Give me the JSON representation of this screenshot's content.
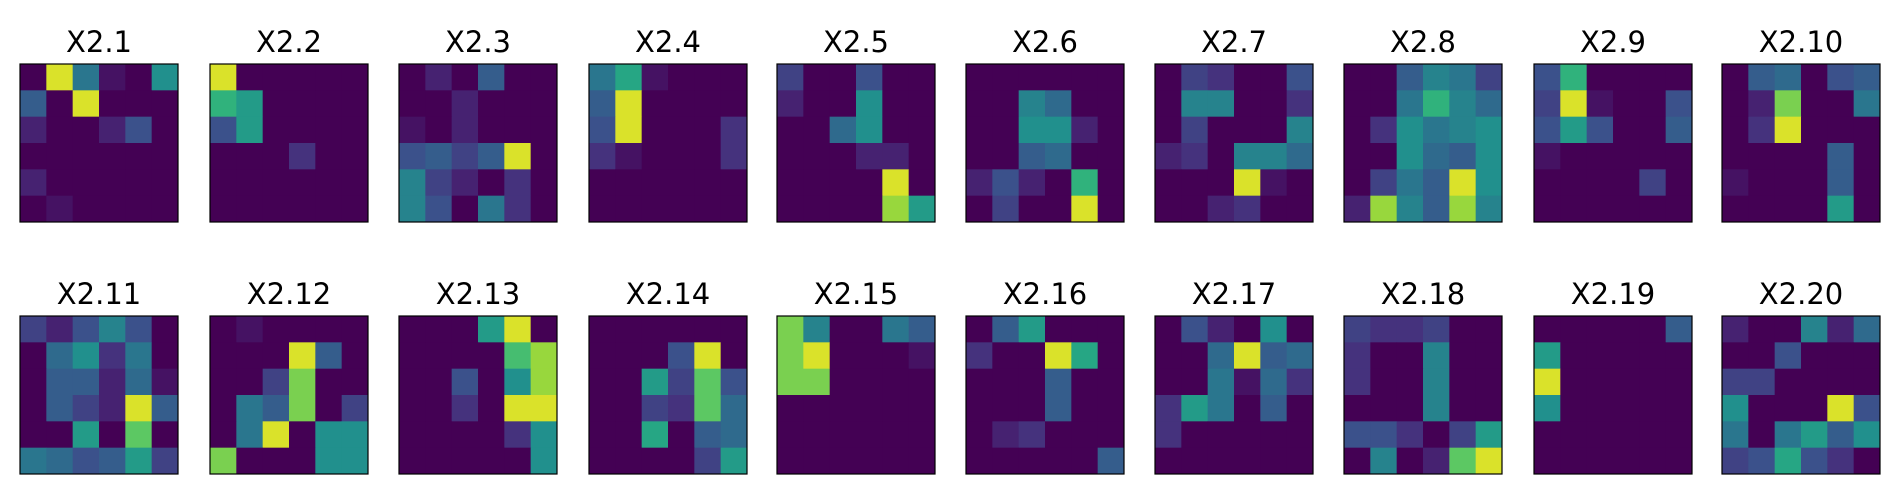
{
  "chart_data": {
    "type": "heatmap",
    "colormap": "viridis",
    "color_range": [
      0,
      1
    ],
    "panels": [
      {
        "title": "X2.1",
        "grid": [
          [
            0.0,
            0.95,
            0.4,
            0.05,
            0.0,
            0.5
          ],
          [
            0.3,
            0.0,
            0.95,
            0.0,
            0.0,
            0.0
          ],
          [
            0.1,
            0.0,
            0.0,
            0.1,
            0.25,
            0.0
          ],
          [
            0.0,
            0.0,
            0.0,
            0.0,
            0.0,
            0.0
          ],
          [
            0.1,
            0.0,
            0.0,
            0.0,
            0.0,
            0.0
          ],
          [
            0.0,
            0.05,
            0.0,
            0.0,
            0.0,
            0.0
          ]
        ]
      },
      {
        "title": "X2.2",
        "grid": [
          [
            0.95,
            0.0,
            0.0,
            0.0,
            0.0,
            0.0
          ],
          [
            0.65,
            0.55,
            0.0,
            0.0,
            0.0,
            0.0
          ],
          [
            0.25,
            0.55,
            0.0,
            0.0,
            0.0,
            0.0
          ],
          [
            0.0,
            0.0,
            0.0,
            0.15,
            0.0,
            0.0
          ],
          [
            0.0,
            0.0,
            0.0,
            0.0,
            0.0,
            0.0
          ],
          [
            0.0,
            0.0,
            0.0,
            0.0,
            0.0,
            0.0
          ]
        ]
      },
      {
        "title": "X2.3",
        "grid": [
          [
            0.0,
            0.1,
            0.0,
            0.3,
            0.0,
            0.0
          ],
          [
            0.0,
            0.0,
            0.1,
            0.0,
            0.0,
            0.0
          ],
          [
            0.05,
            0.0,
            0.1,
            0.0,
            0.0,
            0.0
          ],
          [
            0.25,
            0.3,
            0.2,
            0.3,
            0.95,
            0.0
          ],
          [
            0.45,
            0.2,
            0.1,
            0.0,
            0.15,
            0.0
          ],
          [
            0.45,
            0.25,
            0.0,
            0.4,
            0.15,
            0.0
          ]
        ]
      },
      {
        "title": "X2.4",
        "grid": [
          [
            0.4,
            0.6,
            0.05,
            0.0,
            0.0,
            0.0
          ],
          [
            0.3,
            0.95,
            0.0,
            0.0,
            0.0,
            0.0
          ],
          [
            0.25,
            0.95,
            0.0,
            0.0,
            0.0,
            0.15
          ],
          [
            0.15,
            0.05,
            0.0,
            0.0,
            0.0,
            0.15
          ],
          [
            0.0,
            0.0,
            0.0,
            0.0,
            0.0,
            0.0
          ],
          [
            0.0,
            0.0,
            0.0,
            0.0,
            0.0,
            0.0
          ]
        ]
      },
      {
        "title": "X2.5",
        "grid": [
          [
            0.2,
            0.0,
            0.0,
            0.25,
            0.0,
            0.0
          ],
          [
            0.1,
            0.0,
            0.0,
            0.5,
            0.0,
            0.0
          ],
          [
            0.0,
            0.0,
            0.35,
            0.5,
            0.0,
            0.0
          ],
          [
            0.0,
            0.0,
            0.0,
            0.1,
            0.1,
            0.0
          ],
          [
            0.0,
            0.0,
            0.0,
            0.0,
            0.95,
            0.0
          ],
          [
            0.0,
            0.0,
            0.0,
            0.0,
            0.85,
            0.55
          ]
        ]
      },
      {
        "title": "X2.6",
        "grid": [
          [
            0.0,
            0.0,
            0.0,
            0.0,
            0.0,
            0.0
          ],
          [
            0.0,
            0.0,
            0.45,
            0.35,
            0.0,
            0.0
          ],
          [
            0.0,
            0.0,
            0.5,
            0.5,
            0.1,
            0.0
          ],
          [
            0.0,
            0.0,
            0.3,
            0.35,
            0.0,
            0.0
          ],
          [
            0.1,
            0.25,
            0.1,
            0.0,
            0.65,
            0.0
          ],
          [
            0.0,
            0.2,
            0.0,
            0.0,
            0.95,
            0.0
          ]
        ]
      },
      {
        "title": "X2.7",
        "grid": [
          [
            0.0,
            0.2,
            0.15,
            0.0,
            0.0,
            0.25
          ],
          [
            0.0,
            0.45,
            0.45,
            0.0,
            0.0,
            0.15
          ],
          [
            0.0,
            0.2,
            0.0,
            0.0,
            0.0,
            0.45
          ],
          [
            0.1,
            0.15,
            0.0,
            0.45,
            0.45,
            0.35
          ],
          [
            0.0,
            0.0,
            0.0,
            0.95,
            0.05,
            0.0
          ],
          [
            0.0,
            0.0,
            0.1,
            0.15,
            0.0,
            0.0
          ]
        ]
      },
      {
        "title": "X2.8",
        "grid": [
          [
            0.0,
            0.0,
            0.3,
            0.45,
            0.4,
            0.2
          ],
          [
            0.0,
            0.0,
            0.4,
            0.65,
            0.45,
            0.35
          ],
          [
            0.0,
            0.15,
            0.5,
            0.4,
            0.45,
            0.5
          ],
          [
            0.0,
            0.0,
            0.5,
            0.35,
            0.3,
            0.5
          ],
          [
            0.0,
            0.2,
            0.4,
            0.3,
            0.95,
            0.5
          ],
          [
            0.1,
            0.85,
            0.45,
            0.3,
            0.85,
            0.45
          ]
        ]
      },
      {
        "title": "X2.9",
        "grid": [
          [
            0.25,
            0.65,
            0.0,
            0.0,
            0.0,
            0.0
          ],
          [
            0.2,
            0.95,
            0.05,
            0.0,
            0.0,
            0.25
          ],
          [
            0.25,
            0.55,
            0.25,
            0.0,
            0.0,
            0.3
          ],
          [
            0.05,
            0.0,
            0.0,
            0.0,
            0.0,
            0.0
          ],
          [
            0.0,
            0.0,
            0.0,
            0.0,
            0.2,
            0.0
          ],
          [
            0.0,
            0.0,
            0.0,
            0.0,
            0.0,
            0.0
          ]
        ]
      },
      {
        "title": "X2.10",
        "grid": [
          [
            0.0,
            0.3,
            0.35,
            0.0,
            0.25,
            0.3
          ],
          [
            0.0,
            0.1,
            0.8,
            0.0,
            0.0,
            0.4
          ],
          [
            0.0,
            0.15,
            0.95,
            0.0,
            0.0,
            0.0
          ],
          [
            0.0,
            0.0,
            0.0,
            0.0,
            0.3,
            0.0
          ],
          [
            0.05,
            0.0,
            0.0,
            0.0,
            0.3,
            0.0
          ],
          [
            0.0,
            0.0,
            0.0,
            0.0,
            0.55,
            0.0
          ]
        ]
      },
      {
        "title": "X2.11",
        "grid": [
          [
            0.2,
            0.1,
            0.25,
            0.45,
            0.25,
            0.0
          ],
          [
            0.0,
            0.35,
            0.5,
            0.15,
            0.4,
            0.0
          ],
          [
            0.0,
            0.3,
            0.3,
            0.1,
            0.35,
            0.05
          ],
          [
            0.0,
            0.3,
            0.2,
            0.1,
            0.95,
            0.3
          ],
          [
            0.0,
            0.0,
            0.55,
            0.0,
            0.75,
            0.0
          ],
          [
            0.4,
            0.35,
            0.25,
            0.3,
            0.55,
            0.2
          ]
        ]
      },
      {
        "title": "X2.12",
        "grid": [
          [
            0.0,
            0.05,
            0.0,
            0.0,
            0.0,
            0.0
          ],
          [
            0.0,
            0.0,
            0.0,
            0.95,
            0.3,
            0.0
          ],
          [
            0.0,
            0.0,
            0.2,
            0.8,
            0.0,
            0.0
          ],
          [
            0.0,
            0.4,
            0.3,
            0.8,
            0.0,
            0.2
          ],
          [
            0.0,
            0.4,
            0.95,
            0.0,
            0.5,
            0.5
          ],
          [
            0.8,
            0.0,
            0.0,
            0.0,
            0.5,
            0.5
          ]
        ]
      },
      {
        "title": "X2.13",
        "grid": [
          [
            0.0,
            0.0,
            0.0,
            0.55,
            0.95,
            0.0
          ],
          [
            0.0,
            0.0,
            0.0,
            0.0,
            0.7,
            0.85
          ],
          [
            0.0,
            0.0,
            0.25,
            0.0,
            0.5,
            0.85
          ],
          [
            0.0,
            0.0,
            0.15,
            0.0,
            0.95,
            0.95
          ],
          [
            0.0,
            0.0,
            0.0,
            0.0,
            0.15,
            0.5
          ],
          [
            0.0,
            0.0,
            0.0,
            0.0,
            0.0,
            0.5
          ]
        ]
      },
      {
        "title": "X2.14",
        "grid": [
          [
            0.0,
            0.0,
            0.0,
            0.0,
            0.0,
            0.0
          ],
          [
            0.0,
            0.0,
            0.0,
            0.25,
            0.95,
            0.0
          ],
          [
            0.0,
            0.0,
            0.55,
            0.2,
            0.75,
            0.25
          ],
          [
            0.0,
            0.0,
            0.2,
            0.15,
            0.75,
            0.35
          ],
          [
            0.0,
            0.0,
            0.6,
            0.0,
            0.3,
            0.35
          ],
          [
            0.0,
            0.0,
            0.0,
            0.0,
            0.2,
            0.55
          ]
        ]
      },
      {
        "title": "X2.15",
        "grid": [
          [
            0.8,
            0.45,
            0.0,
            0.0,
            0.4,
            0.3
          ],
          [
            0.8,
            0.95,
            0.0,
            0.0,
            0.0,
            0.05
          ],
          [
            0.8,
            0.8,
            0.0,
            0.0,
            0.0,
            0.0
          ],
          [
            0.0,
            0.0,
            0.0,
            0.0,
            0.0,
            0.0
          ],
          [
            0.0,
            0.0,
            0.0,
            0.0,
            0.0,
            0.0
          ],
          [
            0.0,
            0.0,
            0.0,
            0.0,
            0.0,
            0.0
          ]
        ]
      },
      {
        "title": "X2.16",
        "grid": [
          [
            0.0,
            0.3,
            0.55,
            0.0,
            0.0,
            0.0
          ],
          [
            0.15,
            0.0,
            0.0,
            0.95,
            0.6,
            0.0
          ],
          [
            0.0,
            0.0,
            0.0,
            0.3,
            0.0,
            0.0
          ],
          [
            0.0,
            0.0,
            0.0,
            0.3,
            0.0,
            0.0
          ],
          [
            0.0,
            0.1,
            0.15,
            0.0,
            0.0,
            0.0
          ],
          [
            0.0,
            0.0,
            0.0,
            0.0,
            0.0,
            0.3
          ]
        ]
      },
      {
        "title": "X2.17",
        "grid": [
          [
            0.0,
            0.25,
            0.1,
            0.0,
            0.5,
            0.0
          ],
          [
            0.0,
            0.0,
            0.35,
            0.95,
            0.3,
            0.35
          ],
          [
            0.0,
            0.0,
            0.4,
            0.05,
            0.35,
            0.15
          ],
          [
            0.15,
            0.55,
            0.4,
            0.0,
            0.3,
            0.0
          ],
          [
            0.15,
            0.0,
            0.0,
            0.0,
            0.0,
            0.0
          ],
          [
            0.0,
            0.0,
            0.0,
            0.0,
            0.0,
            0.0
          ]
        ]
      },
      {
        "title": "X2.18",
        "grid": [
          [
            0.2,
            0.15,
            0.15,
            0.2,
            0.0,
            0.0
          ],
          [
            0.15,
            0.0,
            0.0,
            0.45,
            0.0,
            0.0
          ],
          [
            0.15,
            0.0,
            0.0,
            0.45,
            0.0,
            0.0
          ],
          [
            0.0,
            0.0,
            0.0,
            0.45,
            0.0,
            0.0
          ],
          [
            0.25,
            0.25,
            0.15,
            0.0,
            0.2,
            0.55
          ],
          [
            0.0,
            0.45,
            0.0,
            0.1,
            0.75,
            0.95
          ]
        ]
      },
      {
        "title": "X2.19",
        "grid": [
          [
            0.0,
            0.0,
            0.0,
            0.0,
            0.0,
            0.3
          ],
          [
            0.55,
            0.0,
            0.0,
            0.0,
            0.0,
            0.0
          ],
          [
            0.95,
            0.0,
            0.0,
            0.0,
            0.0,
            0.0
          ],
          [
            0.5,
            0.0,
            0.0,
            0.0,
            0.0,
            0.0
          ],
          [
            0.0,
            0.0,
            0.0,
            0.0,
            0.0,
            0.0
          ],
          [
            0.0,
            0.0,
            0.0,
            0.0,
            0.0,
            0.0
          ]
        ]
      },
      {
        "title": "X2.20",
        "grid": [
          [
            0.1,
            0.0,
            0.0,
            0.45,
            0.1,
            0.35
          ],
          [
            0.0,
            0.0,
            0.25,
            0.0,
            0.0,
            0.0
          ],
          [
            0.2,
            0.2,
            0.0,
            0.0,
            0.0,
            0.0
          ],
          [
            0.5,
            0.0,
            0.0,
            0.0,
            0.95,
            0.25
          ],
          [
            0.4,
            0.0,
            0.4,
            0.55,
            0.3,
            0.5
          ],
          [
            0.2,
            0.25,
            0.6,
            0.25,
            0.15,
            0.0
          ]
        ]
      }
    ]
  }
}
